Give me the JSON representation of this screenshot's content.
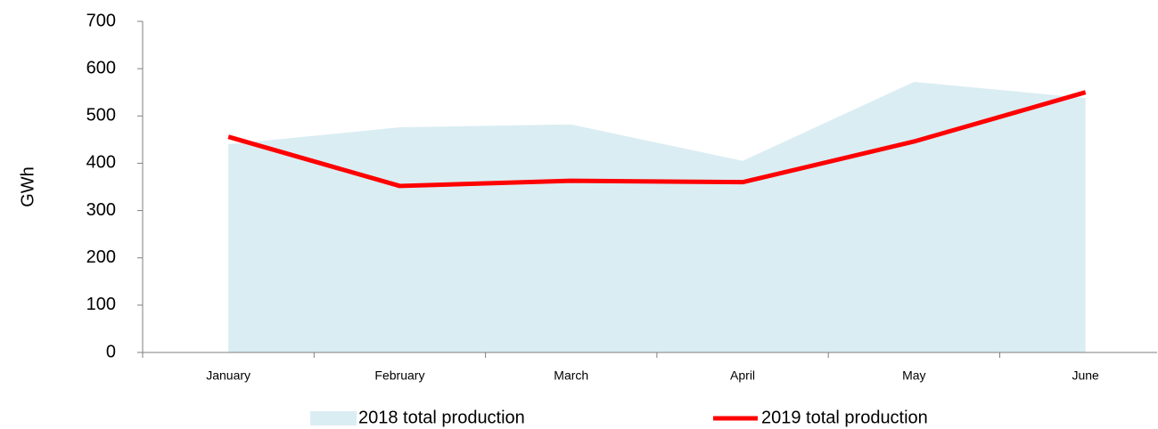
{
  "chart_data": {
    "type": "area",
    "y_label": "GWh",
    "categories": [
      "January",
      "February",
      "March",
      "April",
      "May",
      "June"
    ],
    "series": [
      {
        "name": "2018 total production",
        "type": "area",
        "color": "#daedf3",
        "values": [
          440,
          476,
          482,
          405,
          572,
          538
        ]
      },
      {
        "name": "2019 total production",
        "type": "line",
        "color": "#ff0000",
        "values": [
          456,
          352,
          363,
          360,
          446,
          550
        ]
      }
    ],
    "ylim": [
      0,
      700
    ],
    "yticks": [
      0,
      100,
      200,
      300,
      400,
      500,
      600,
      700
    ],
    "legend": "bottom"
  }
}
